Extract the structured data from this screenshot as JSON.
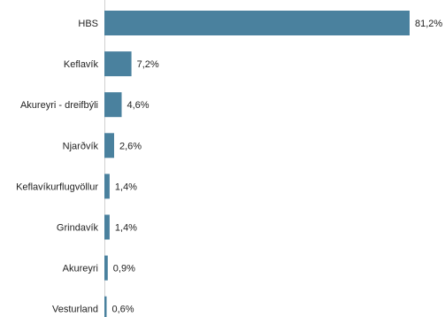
{
  "chart_data": {
    "type": "bar",
    "orientation": "horizontal",
    "categories": [
      "HBS",
      "Keflavík",
      "Akureyri - dreifbýli",
      "Njarðvík",
      "Keflavíkurflugvöllur",
      "Grindavík",
      "Akureyri",
      "Vesturland"
    ],
    "values": [
      81.2,
      7.2,
      4.6,
      2.6,
      1.4,
      1.4,
      0.9,
      0.6
    ],
    "value_labels": [
      "81,2%",
      "7,2%",
      "4,6%",
      "2,6%",
      "1,4%",
      "1,4%",
      "0,9%",
      "0,6%"
    ],
    "unit": "%",
    "xlim": [
      0,
      81.2
    ],
    "grid": false,
    "legend": "none",
    "colors": {
      "bar": "#4a819e",
      "text": "#222222"
    }
  }
}
